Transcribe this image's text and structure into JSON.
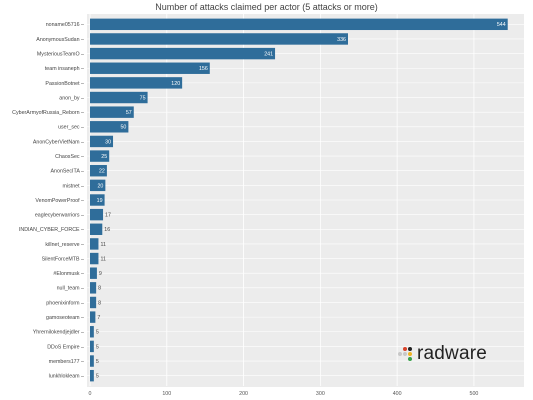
{
  "chart_data": {
    "type": "bar",
    "orientation": "horizontal",
    "title": "Number of attacks claimed per actor (5 attacks or more)",
    "categories": [
      "noname05716",
      "AnonymousSudan",
      "MysteriousTeamO",
      "team insaneph",
      "PassionBotnet",
      "anon_by",
      "CyberArmyofRussia_Reborn",
      "user_sec",
      "AnonCyberVietNam",
      "ChaosSec",
      "AnonSecITA",
      "mistnet",
      "VenomPowerProof",
      "eaglecyberwarriors",
      "INDIAN_CYBER_FORCE",
      "killnet_reserve",
      "SilentForceMTB",
      "#Elonmusk",
      "null_team",
      "phoenixinform",
      "gamoseoteam",
      "Yhrernilokendjejdler",
      "DDoS Empire",
      "members177",
      "lunkhlokleam"
    ],
    "values": [
      544,
      336,
      241,
      156,
      120,
      75,
      57,
      50,
      30,
      25,
      22,
      20,
      19,
      17,
      16,
      11,
      11,
      9,
      8,
      8,
      7,
      5,
      5,
      5,
      5
    ],
    "xlim": [
      0,
      560
    ],
    "xticks": [
      0,
      100,
      200,
      300,
      400,
      500
    ],
    "bar_color": "#2f6d9a",
    "plot_background": "#ececec",
    "grid": true
  },
  "logo": {
    "text": "radware",
    "dot_colors": [
      "#c8c8c8",
      "#c8c8c8",
      "#d8432b",
      "#222222",
      "#f0b323",
      "#38a04a"
    ]
  }
}
